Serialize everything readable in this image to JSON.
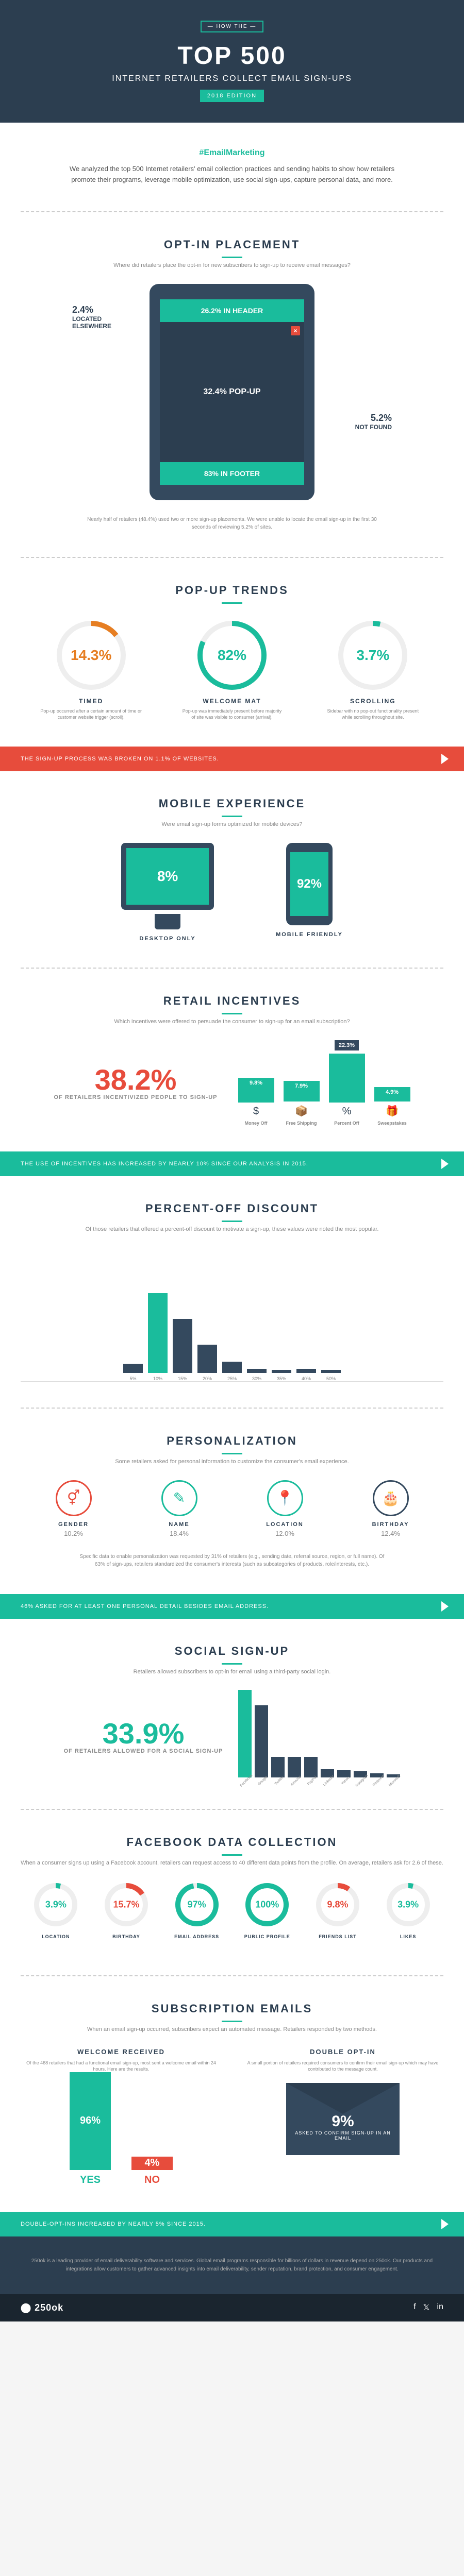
{
  "header": {
    "badge": "— HOW THE —",
    "title": "TOP 500",
    "sub": "INTERNET RETAILERS\nCOLLECT EMAIL SIGN-UPS",
    "year": "2018 EDITION"
  },
  "intro": {
    "hashtag": "#EmailMarketing",
    "text": "We analyzed the top 500 Internet retailers' email collection practices and sending habits to show how retailers promote their programs, leverage mobile optimization, use social sign-ups, capture personal data, and more."
  },
  "optin": {
    "title": "OPT-IN PLACEMENT",
    "sub": "Where did retailers place the opt-in for new subscribers to sign-up to receive email messages?",
    "header_pct": "26.2% IN HEADER",
    "popup_pct": "32.4% POP-UP",
    "footer_pct": "83% IN FOOTER",
    "elsewhere": {
      "pct": "2.4%",
      "label": "LOCATED ELSEWHERE"
    },
    "notfound": {
      "pct": "5.2%",
      "label": "NOT FOUND"
    },
    "note": "Nearly half of retailers (48.4%) used two or more sign-up placements. We were unable to locate the email sign-up in the first 30 seconds of reviewing 5.2% of sites."
  },
  "popup": {
    "title": "POP-UP TRENDS",
    "rings": [
      {
        "pct": 14.3,
        "label": "TIMED",
        "desc": "Pop-up occurred after a certain amount of time or customer website trigger (scroll).",
        "color": "#e67e22"
      },
      {
        "pct": 82,
        "label": "WELCOME MAT",
        "desc": "Pop-up was immediately present before majority of site was visible to consumer (arrival).",
        "color": "#1abc9c"
      },
      {
        "pct": 3.7,
        "label": "SCROLLING",
        "desc": "Sidebar with no pop-out functionality present while scrolling throughout site.",
        "color": "#1abc9c"
      }
    ]
  },
  "banner1": "THE SIGN-UP PROCESS WAS BROKEN ON 1.1% OF WEBSITES.",
  "mobile": {
    "title": "MOBILE EXPERIENCE",
    "sub": "Were email sign-up forms optimized for mobile devices?",
    "desktop": {
      "pct": "8%",
      "label": "DESKTOP ONLY"
    },
    "phone": {
      "pct": "92%",
      "label": "MOBILE FRIENDLY"
    }
  },
  "incentives": {
    "title": "RETAIL INCENTIVES",
    "sub": "Which incentives were offered to persuade the consumer to sign-up for an email subscription?",
    "big": "38.2%",
    "big_sub": "OF RETAILERS INCENTIVIZED PEOPLE TO SIGN-UP",
    "bars": [
      {
        "pct": "9.8%",
        "h": 48,
        "icon": "$",
        "label": "Money Off"
      },
      {
        "pct": "7.9%",
        "h": 40,
        "icon": "📦",
        "label": "Free Shipping"
      },
      {
        "pct": "22.3%",
        "h": 95,
        "icon": "%",
        "label": "Percent Off",
        "flag": true
      },
      {
        "pct": "4.9%",
        "h": 28,
        "icon": "🎁",
        "label": "Sweepstakes"
      }
    ]
  },
  "banner2": "THE USE OF INCENTIVES HAS INCREASED BY NEARLY 10% SINCE OUR ANALYSIS IN 2015.",
  "percentoff": {
    "title": "PERCENT-OFF DISCOUNT",
    "sub": "Of those retailers that offered a percent-off discount to motivate a sign-up, these values were noted the most popular.",
    "bars": [
      {
        "l": "5%",
        "h": 18
      },
      {
        "l": "10%",
        "h": 155,
        "hl": true
      },
      {
        "l": "15%",
        "h": 105
      },
      {
        "l": "20%",
        "h": 55
      },
      {
        "l": "25%",
        "h": 22
      },
      {
        "l": "30%",
        "h": 8
      },
      {
        "l": "35%",
        "h": 6
      },
      {
        "l": "40%",
        "h": 8
      },
      {
        "l": "50%",
        "h": 6
      }
    ]
  },
  "personalization": {
    "title": "PERSONALIZATION",
    "sub": "Some retailers asked for personal information to customize the consumer's email experience.",
    "items": [
      {
        "icon": "⚥",
        "label": "GENDER",
        "pct": "10.2%",
        "color": "#e74c3c"
      },
      {
        "icon": "✎",
        "label": "NAME",
        "pct": "18.4%",
        "color": "#1abc9c"
      },
      {
        "icon": "📍",
        "label": "LOCATION",
        "pct": "12.0%",
        "color": "#1abc9c"
      },
      {
        "icon": "🎂",
        "label": "BIRTHDAY",
        "pct": "12.4%",
        "color": "#34495e"
      }
    ],
    "note": "Specific data to enable personalization was requested by 31% of retailers (e.g., sending date, referral source, region, or full name). Of 63% of sign-ups, retailers standardized the consumer's interests (such as subcategories of products, role/interests, etc.)."
  },
  "banner3": "46% ASKED FOR AT LEAST ONE PERSONAL DETAIL BESIDES EMAIL ADDRESS.",
  "social": {
    "title": "SOCIAL SIGN-UP",
    "sub": "Retailers allowed subscribers to opt-in for email using a third-party social login.",
    "big": "33.9%",
    "big_sub": "OF RETAILERS ALLOWED FOR A SOCIAL SIGN-UP",
    "bars": [
      {
        "l": "Facebook",
        "h": 170,
        "c": "#1abc9c"
      },
      {
        "l": "Google",
        "h": 140,
        "c": "#34495e"
      },
      {
        "l": "Twitter",
        "h": 40,
        "c": "#34495e"
      },
      {
        "l": "Amazon",
        "h": 40,
        "c": "#34495e"
      },
      {
        "l": "PayPal",
        "h": 40,
        "c": "#34495e"
      },
      {
        "l": "LinkedIn",
        "h": 16,
        "c": "#34495e"
      },
      {
        "l": "Yahoo",
        "h": 14,
        "c": "#34495e"
      },
      {
        "l": "Instagram",
        "h": 12,
        "c": "#34495e"
      },
      {
        "l": "Pinterest",
        "h": 8,
        "c": "#34495e"
      },
      {
        "l": "Microsoft",
        "h": 6,
        "c": "#34495e"
      }
    ]
  },
  "facebook": {
    "title": "FACEBOOK DATA COLLECTION",
    "sub": "When a consumer signs up using a Facebook account, retailers can request access to 40 different data points from the profile. On average, retailers ask for 2.6 of these.",
    "rings": [
      {
        "pct": 3.9,
        "label": "LOCATION",
        "c": "#1abc9c"
      },
      {
        "pct": 15.7,
        "label": "BIRTHDAY",
        "c": "#e74c3c"
      },
      {
        "pct": 97,
        "label": "EMAIL ADDRESS",
        "c": "#1abc9c"
      },
      {
        "pct": 100,
        "label": "PUBLIC PROFILE",
        "c": "#1abc9c"
      },
      {
        "pct": 9.8,
        "label": "FRIENDS LIST",
        "c": "#e74c3c"
      },
      {
        "pct": 3.9,
        "label": "LIKES",
        "c": "#1abc9c"
      }
    ]
  },
  "subscription": {
    "title": "SUBSCRIPTION EMAILS",
    "sub": "When an email sign-up occurred, subscribers expect an automated message. Retailers responded by two methods.",
    "welcome": {
      "title": "WELCOME RECEIVED",
      "desc": "Of the 468 retailers that had a functional email sign-up, most sent a welcome email within 24 hours. Here are the results.",
      "yes": {
        "pct": "96%",
        "label": "YES",
        "c": "#1abc9c",
        "h": 190
      },
      "no": {
        "pct": "4%",
        "label": "NO",
        "c": "#e74c3c",
        "h": 26
      }
    },
    "double": {
      "title": "DOUBLE OPT-IN",
      "desc": "A small portion of retailers required consumers to confirm their email sign-up which may have contributed to the message count.",
      "pct": "9%",
      "txt": "ASKED TO CONFIRM SIGN-UP IN AN EMAIL"
    }
  },
  "banner4": "DOUBLE-OPT-INS INCREASED BY NEARLY 5% SINCE 2015.",
  "footer": {
    "text": "250ok is a leading provider of email deliverability software and services. Global email programs responsible for billions of dollars in revenue depend on 250ok. Our products and integrations allow customers to gather advanced insights into email deliverability, sender reputation, brand protection, and consumer engagement.",
    "logo": "⬤ 250ok"
  }
}
